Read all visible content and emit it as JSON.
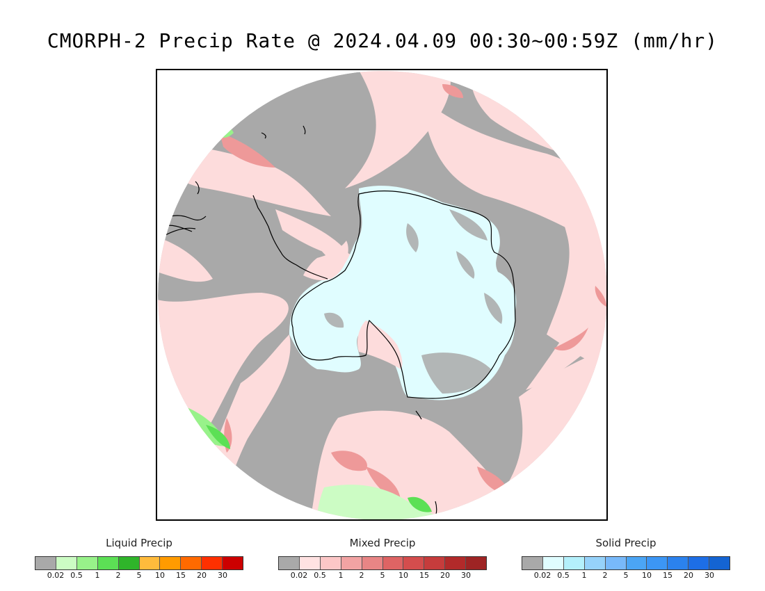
{
  "title": "CMORPH-2 Precip Rate @ 2024.04.09 00:30~00:59Z (mm/hr)",
  "map": {
    "projection": "south polar stereographic",
    "colors": {
      "no_precip": "#a9a9a9",
      "ice_surface": "#e0fdff",
      "coastline": "#000000",
      "outside": "#ffffff"
    }
  },
  "legends": [
    {
      "name": "liquid",
      "title": "Liquid Precip",
      "ticks": [
        "0.02",
        "0.5",
        "1",
        "2",
        "5",
        "10",
        "15",
        "20",
        "30"
      ],
      "colors": [
        "#a9a9a9",
        "#ccfcc4",
        "#98f28a",
        "#5ce055",
        "#2fb52a",
        "#ffbb3c",
        "#ff9b00",
        "#ff6a00",
        "#fe3000",
        "#cc0000"
      ]
    },
    {
      "name": "mixed",
      "title": "Mixed Precip",
      "ticks": [
        "0.02",
        "0.5",
        "1",
        "2",
        "5",
        "10",
        "15",
        "20",
        "30"
      ],
      "colors": [
        "#a9a9a9",
        "#ffe2e2",
        "#fcc7c7",
        "#f2a3a3",
        "#e88585",
        "#de6464",
        "#d44d4d",
        "#c63c3c",
        "#b22a2a",
        "#9e2424"
      ]
    },
    {
      "name": "solid",
      "title": "Solid Precip",
      "ticks": [
        "0.02",
        "0.5",
        "1",
        "2",
        "5",
        "10",
        "15",
        "20",
        "30"
      ],
      "colors": [
        "#a9a9a9",
        "#e0fdff",
        "#b4f0fb",
        "#96d2fa",
        "#78b9fa",
        "#4ba5f5",
        "#3c96f5",
        "#2b82ee",
        "#1d6ee6",
        "#1464d2"
      ]
    }
  ]
}
